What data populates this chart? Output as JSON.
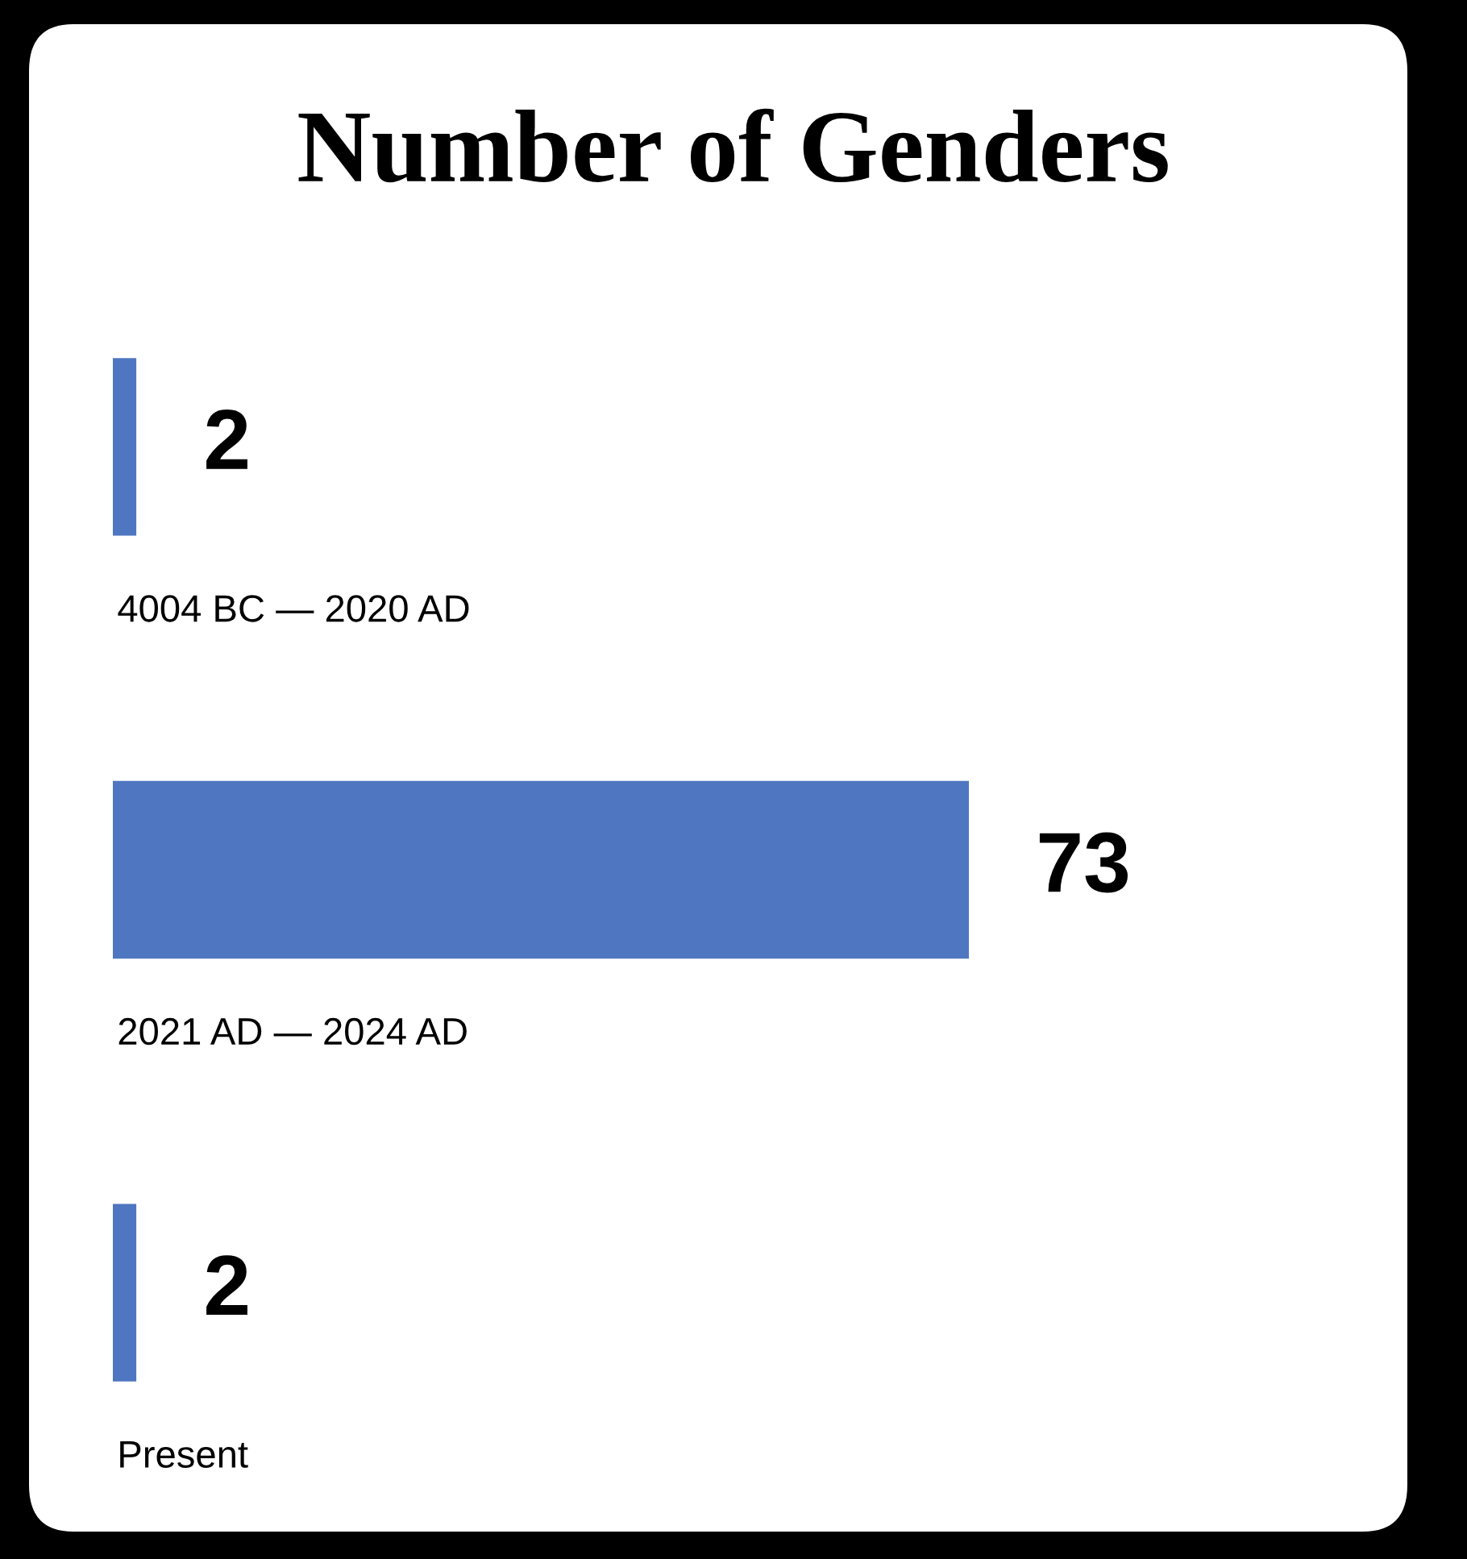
{
  "chart_data": {
    "type": "bar",
    "orientation": "horizontal",
    "title": "Number of Genders",
    "categories": [
      "4004 BC — 2020 AD",
      "2021 AD — 2024 AD",
      "Present"
    ],
    "values": [
      2,
      73,
      2
    ],
    "color": "#4f76c0",
    "data_labels": true
  }
}
